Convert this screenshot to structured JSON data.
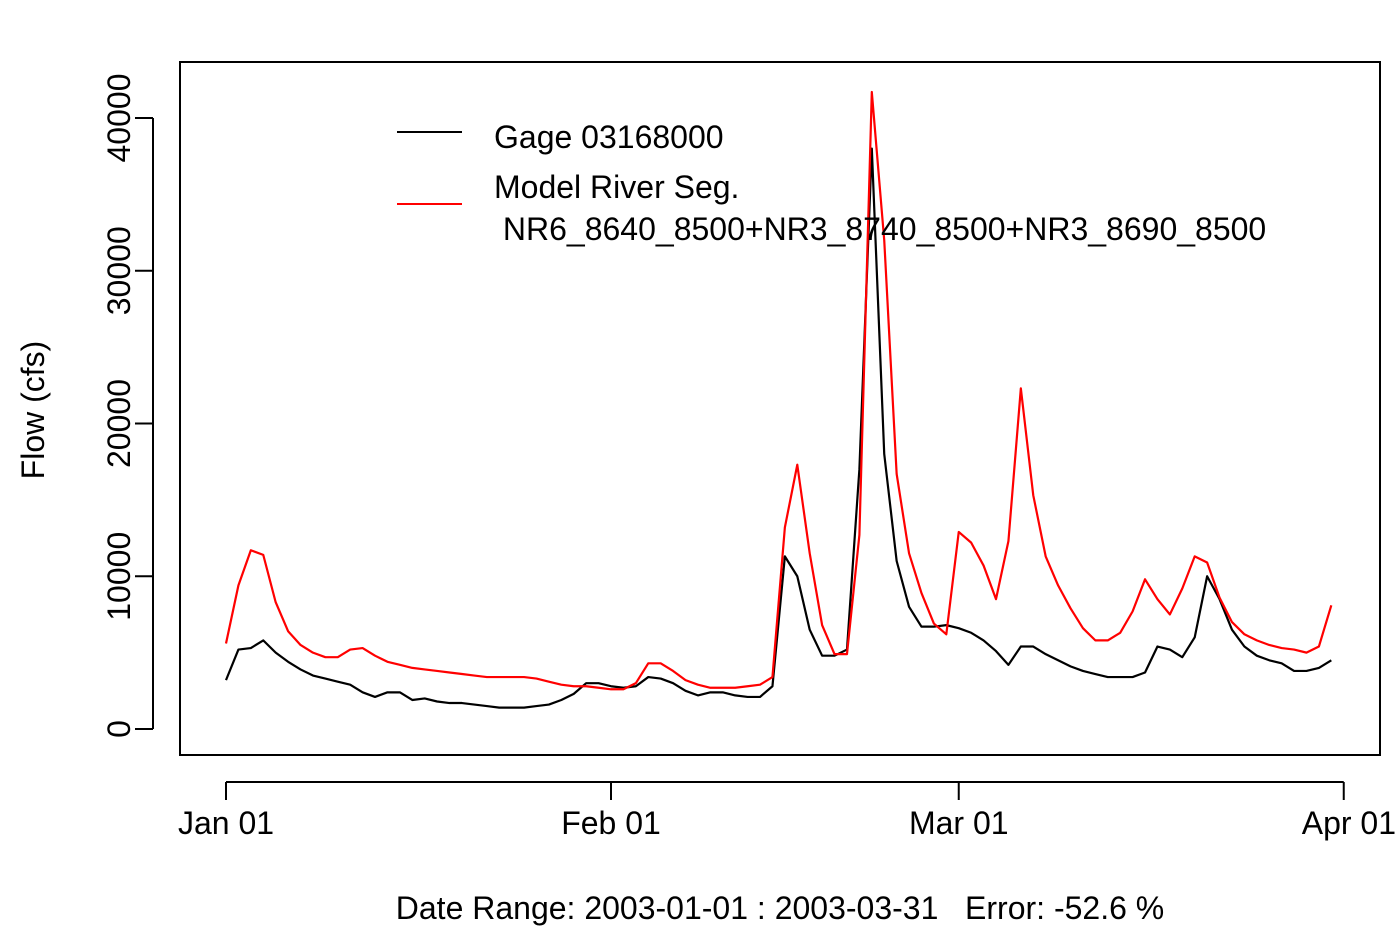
{
  "chart_data": {
    "type": "line",
    "title": "",
    "xlabel": "Date Range: 2003-01-01 : 2003-03-31   Error: -52.6 %",
    "ylabel": "Flow (cfs)",
    "x_start": "2003-01-01",
    "x_end": "2003-03-31",
    "xlim": [
      "2003-01-01",
      "2003-03-31"
    ],
    "x_ticks": [
      "2003-01-01",
      "2003-02-01",
      "2003-03-01",
      "2003-04-01"
    ],
    "x_tick_labels": [
      "Jan 01",
      "Feb 01",
      "Mar 01",
      "Apr 01"
    ],
    "ylim": [
      -2000,
      43500
    ],
    "y_ticks": [
      0,
      10000,
      20000,
      30000,
      40000
    ],
    "y_tick_labels": [
      "0",
      "10000",
      "20000",
      "30000",
      "40000"
    ],
    "grid": false,
    "legend_position": "top-center",
    "series": [
      {
        "name": "Gage 03168000",
        "color": "#000000",
        "values": [
          3200,
          5200,
          5300,
          5800,
          5000,
          4400,
          3900,
          3500,
          3300,
          3100,
          2900,
          2400,
          2100,
          2400,
          2400,
          1900,
          2000,
          1800,
          1700,
          1700,
          1600,
          1500,
          1400,
          1400,
          1400,
          1500,
          1600,
          1900,
          2300,
          3000,
          3000,
          2800,
          2700,
          2800,
          3400,
          3300,
          3000,
          2500,
          2200,
          2400,
          2400,
          2200,
          2100,
          2100,
          2800,
          11300,
          10000,
          6500,
          4800,
          4800,
          5200,
          17000,
          38000,
          18000,
          11000,
          8000,
          6700,
          6700,
          6800,
          6600,
          6300,
          5800,
          5100,
          4200,
          5400,
          5400,
          4900,
          4500,
          4100,
          3800,
          3600,
          3400,
          3400,
          3400,
          3700,
          5400,
          5200,
          4700,
          6000,
          10000,
          8500,
          6500,
          5400,
          4800,
          4500,
          4300,
          3800,
          3800,
          4000,
          4500
        ]
      },
      {
        "name": "Model River Seg.\n NR6_8640_8500+NR3_8740_8500+NR3_8690_8500",
        "color": "#ff0000",
        "values": [
          5600,
          9400,
          11700,
          11400,
          8300,
          6400,
          5500,
          5000,
          4700,
          4700,
          5200,
          5300,
          4800,
          4400,
          4200,
          4000,
          3900,
          3800,
          3700,
          3600,
          3500,
          3400,
          3400,
          3400,
          3400,
          3300,
          3100,
          2900,
          2800,
          2800,
          2700,
          2600,
          2600,
          3000,
          4300,
          4300,
          3800,
          3200,
          2900,
          2700,
          2700,
          2700,
          2800,
          2900,
          3400,
          13200,
          17300,
          11500,
          6800,
          4900,
          4900,
          12700,
          41700,
          32000,
          16700,
          11500,
          8900,
          6900,
          6200,
          12900,
          12200,
          10700,
          8500,
          12300,
          22300,
          15300,
          11300,
          9400,
          7900,
          6600,
          5800,
          5800,
          6300,
          7700,
          9800,
          8500,
          7500,
          9200,
          11300,
          10900,
          8600,
          7000,
          6200,
          5800,
          5500,
          5300,
          5200,
          5000,
          5400,
          8100
        ]
      }
    ]
  }
}
